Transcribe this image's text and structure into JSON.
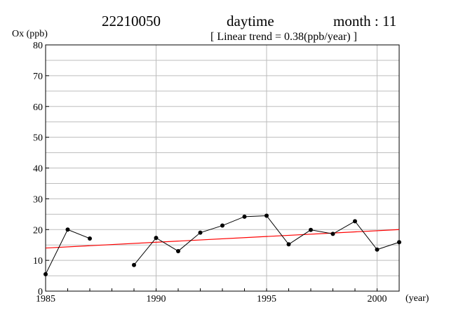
{
  "header": {
    "station": "22210050",
    "period": "daytime",
    "month": "month : 11",
    "trend": "[ Linear trend = 0.38(ppb/year) ]"
  },
  "chart_data": {
    "type": "line",
    "title": "",
    "ylabel": "Ox (ppb)",
    "xlabel": "(year)",
    "xlim": [
      1985,
      2001
    ],
    "ylim": [
      0,
      80
    ],
    "x_ticks": [
      1985,
      1990,
      1995,
      2000
    ],
    "y_ticks": [
      0,
      10,
      20,
      30,
      40,
      50,
      60,
      70,
      80
    ],
    "grid": true,
    "series": [
      {
        "x": [
          1985,
          1986,
          1987,
          1988,
          1989,
          1990,
          1991,
          1992,
          1993,
          1994,
          1995,
          1996,
          1997,
          1998,
          1999,
          2000,
          2001
        ],
        "y": [
          5.5,
          20.0,
          17.1,
          null,
          8.5,
          17.3,
          13.0,
          19.0,
          21.3,
          24.2,
          24.5,
          15.2,
          19.9,
          18.6,
          22.7,
          13.5,
          15.9
        ],
        "color": "#000000"
      }
    ],
    "trend_line": {
      "x": [
        1985,
        2001
      ],
      "y": [
        14.0,
        20.0
      ],
      "color": "#ff0000"
    }
  }
}
